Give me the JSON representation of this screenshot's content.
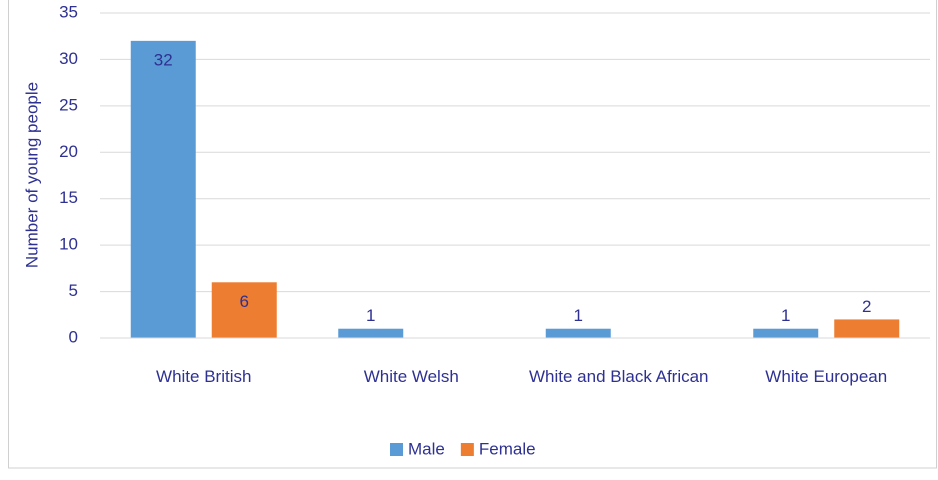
{
  "chart_data": {
    "type": "bar",
    "y_label": "Number of young people",
    "categories": [
      "White British",
      "White Welsh",
      "White and Black African",
      "White European"
    ],
    "series": [
      {
        "name": "Male",
        "color": "#5b9bd5",
        "values": [
          32,
          1,
          1,
          1
        ]
      },
      {
        "name": "Female",
        "color": "#ed7d31",
        "values": [
          6,
          null,
          null,
          2
        ]
      }
    ],
    "ylim": [
      0,
      35
    ],
    "yticks": [
      0,
      5,
      10,
      15,
      20,
      25,
      30,
      35
    ],
    "grid": true,
    "legend": "bottom"
  }
}
